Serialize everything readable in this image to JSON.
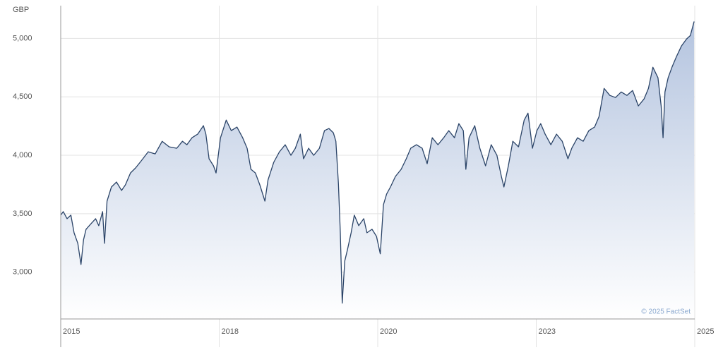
{
  "chart_data": {
    "type": "line",
    "unit_label": "GBP",
    "source": "© 2025 FactSet",
    "color": "#2b4468",
    "fill_top": "#b4c4df",
    "fill_bottom": "#ffffff",
    "grid": true,
    "xlim": [
      2015.8,
      2025.8
    ],
    "xticks": [
      {
        "value": 2015.8,
        "label": "2015"
      },
      {
        "value": 2018.3,
        "label": "2018"
      },
      {
        "value": 2020.8,
        "label": "2020"
      },
      {
        "value": 2023.3,
        "label": "2023"
      },
      {
        "value": 2025.8,
        "label": "2025"
      }
    ],
    "ylim": [
      2600,
      5280
    ],
    "yticks": [
      {
        "value": 3000,
        "label": "3,000"
      },
      {
        "value": 3500,
        "label": "3,500"
      },
      {
        "value": 4000,
        "label": "4,000"
      },
      {
        "value": 4500,
        "label": "4,500"
      },
      {
        "value": 5000,
        "label": "5,000"
      }
    ],
    "x": [
      2015.8,
      2015.84,
      2015.9,
      2015.96,
      2016.01,
      2016.07,
      2016.12,
      2016.16,
      2016.2,
      2016.27,
      2016.35,
      2016.4,
      2016.46,
      2016.49,
      2016.53,
      2016.6,
      2016.68,
      2016.76,
      2016.82,
      2016.9,
      2016.98,
      2017.07,
      2017.18,
      2017.29,
      2017.4,
      2017.51,
      2017.63,
      2017.72,
      2017.79,
      2017.87,
      2017.96,
      2018.05,
      2018.09,
      2018.14,
      2018.21,
      2018.25,
      2018.32,
      2018.41,
      2018.49,
      2018.58,
      2018.67,
      2018.74,
      2018.8,
      2018.87,
      2018.94,
      2019.02,
      2019.07,
      2019.16,
      2019.25,
      2019.34,
      2019.43,
      2019.5,
      2019.58,
      2019.63,
      2019.71,
      2019.79,
      2019.88,
      2019.96,
      2020.03,
      2020.1,
      2020.14,
      2020.18,
      2020.21,
      2020.24,
      2020.28,
      2020.32,
      2020.38,
      2020.43,
      2020.5,
      2020.58,
      2020.63,
      2020.71,
      2020.78,
      2020.84,
      2020.89,
      2020.94,
      2021.0,
      2021.08,
      2021.17,
      2021.25,
      2021.32,
      2021.41,
      2021.5,
      2021.58,
      2021.66,
      2021.75,
      2021.84,
      2021.92,
      2022.01,
      2022.08,
      2022.15,
      2022.19,
      2022.24,
      2022.33,
      2022.41,
      2022.5,
      2022.59,
      2022.68,
      2022.75,
      2022.79,
      2022.86,
      2022.93,
      2023.02,
      2023.11,
      2023.17,
      2023.24,
      2023.31,
      2023.37,
      2023.44,
      2023.53,
      2023.62,
      2023.71,
      2023.8,
      2023.86,
      2023.95,
      2024.04,
      2024.13,
      2024.22,
      2024.29,
      2024.37,
      2024.46,
      2024.55,
      2024.64,
      2024.73,
      2024.82,
      2024.91,
      2025.0,
      2025.07,
      2025.14,
      2025.22,
      2025.27,
      2025.3,
      2025.33,
      2025.38,
      2025.44,
      2025.51,
      2025.59,
      2025.67,
      2025.73,
      2025.79
    ],
    "values": [
      3488,
      3518,
      3458,
      3488,
      3337,
      3247,
      3066,
      3277,
      3367,
      3410,
      3458,
      3398,
      3518,
      3247,
      3608,
      3729,
      3771,
      3699,
      3747,
      3849,
      3892,
      3952,
      4030,
      4012,
      4120,
      4072,
      4060,
      4120,
      4090,
      4150,
      4181,
      4253,
      4181,
      3970,
      3910,
      3849,
      4150,
      4301,
      4211,
      4241,
      4150,
      4060,
      3880,
      3849,
      3747,
      3608,
      3789,
      3940,
      4030,
      4090,
      4000,
      4060,
      4181,
      3970,
      4060,
      4000,
      4060,
      4211,
      4229,
      4193,
      4120,
      3759,
      3337,
      2735,
      3096,
      3187,
      3337,
      3488,
      3398,
      3458,
      3337,
      3367,
      3307,
      3157,
      3578,
      3669,
      3729,
      3819,
      3880,
      3970,
      4060,
      4090,
      4060,
      3928,
      4150,
      4090,
      4150,
      4211,
      4150,
      4271,
      4211,
      3880,
      4150,
      4253,
      4060,
      3910,
      4090,
      4000,
      3819,
      3729,
      3910,
      4120,
      4072,
      4301,
      4361,
      4060,
      4211,
      4271,
      4181,
      4090,
      4181,
      4120,
      3970,
      4060,
      4150,
      4120,
      4211,
      4241,
      4331,
      4572,
      4512,
      4494,
      4542,
      4512,
      4554,
      4422,
      4482,
      4572,
      4753,
      4663,
      4422,
      4150,
      4542,
      4663,
      4753,
      4843,
      4934,
      4994,
      5024,
      5145
    ]
  }
}
